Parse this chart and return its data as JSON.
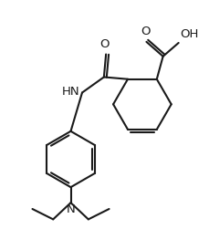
{
  "bg_color": "#ffffff",
  "line_color": "#1a1a1a",
  "line_width": 1.5,
  "font_size": 9.5,
  "fig_width": 2.3,
  "fig_height": 2.74,
  "dpi": 100,
  "xlim": [
    0,
    10
  ],
  "ylim": [
    0,
    12
  ]
}
